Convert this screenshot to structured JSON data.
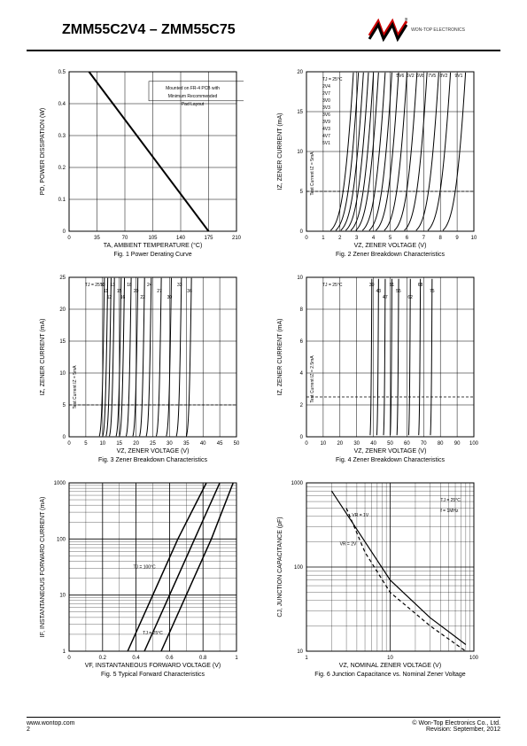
{
  "header": {
    "title": "ZMM55C2V4 – ZMM55C75",
    "company": "WON-TOP ELECTRONICS"
  },
  "footer": {
    "url": "www.wontop.com",
    "page": "2",
    "copyright": "© Won-Top Electronics Co., Ltd.",
    "revision": "Revision: September, 2012"
  },
  "fig1": {
    "title": "Fig. 1 Power Derating Curve",
    "xlabel": "TA, AMBIENT TEMPERATURE (°C)",
    "ylabel": "PD, POWER DISSIPATION (W)",
    "annotation": "Mounted on FR-4 PCB with Minimum Recommended Pad Layout",
    "xlim": [
      0,
      210
    ],
    "xticks": [
      0,
      35,
      70,
      105,
      140,
      175,
      210
    ],
    "ylim": [
      0,
      0.5
    ],
    "yticks": [
      0,
      0.1,
      0.2,
      0.3,
      0.4,
      0.5
    ],
    "line": [
      [
        25,
        0.5
      ],
      [
        175,
        0
      ]
    ],
    "line_width": 2,
    "line_color": "#000000",
    "grid_color": "#000000",
    "background": "#ffffff"
  },
  "fig2": {
    "title": "Fig. 2 Zener Breakdown Characteristics",
    "xlabel": "VZ, ZENER VOLTAGE (V)",
    "ylabel": "IZ, ZENER CURRENT (mA)",
    "annotation_temp": "TJ = 25°C",
    "annotation_test": "Test Current IZ = 5mA",
    "xlim": [
      0,
      10
    ],
    "xticks": [
      0,
      1,
      2,
      3,
      4,
      5,
      6,
      7,
      8,
      9,
      10
    ],
    "ylim": [
      0,
      20
    ],
    "yticks": [
      0,
      5,
      10,
      15,
      20
    ],
    "test_current": 5,
    "curves_labels": [
      "2V4",
      "2V7",
      "3V0",
      "3V3",
      "3V6",
      "3V9",
      "4V3",
      "4V7",
      "5V1",
      "5V6",
      "6V2",
      "6V8",
      "7V5",
      "8V2",
      "9V1"
    ],
    "curve_voltages": [
      2.4,
      2.7,
      3.0,
      3.3,
      3.6,
      3.9,
      4.3,
      4.7,
      5.1,
      5.6,
      6.2,
      6.8,
      7.5,
      8.2,
      9.1
    ],
    "line_color": "#000000",
    "grid_color": "#000000"
  },
  "fig3": {
    "title": "Fig. 3 Zener Breakdown Characteristics",
    "xlabel": "VZ, ZENER VOLTAGE (V)",
    "ylabel": "IZ, ZENER CURRENT (mA)",
    "annotation_temp": "TJ = 25°C",
    "annotation_test": "Test Current IZ = 5mA",
    "xlim": [
      0,
      50
    ],
    "xticks": [
      0,
      5,
      10,
      15,
      20,
      25,
      30,
      35,
      40,
      45,
      50
    ],
    "ylim": [
      0,
      25
    ],
    "yticks": [
      0,
      5,
      10,
      15,
      20,
      25
    ],
    "test_current": 5,
    "curves_labels": [
      "10",
      "11",
      "12",
      "13",
      "15",
      "16",
      "18",
      "20",
      "22",
      "24",
      "27",
      "30",
      "33",
      "36"
    ],
    "curve_voltages": [
      10,
      11,
      12,
      13,
      15,
      16,
      18,
      20,
      22,
      24,
      27,
      30,
      33,
      36
    ],
    "line_color": "#000000",
    "grid_color": "#000000"
  },
  "fig4": {
    "title": "Fig. 4 Zener Breakdown Characteristics",
    "xlabel": "VZ, ZENER VOLTAGE (V)",
    "ylabel": "IZ, ZENER CURRENT (mA)",
    "annotation_temp": "TJ = 25°C",
    "annotation_test": "Test Current IZ = 2.5mA",
    "xlim": [
      0,
      100
    ],
    "xticks": [
      0,
      10,
      20,
      30,
      40,
      50,
      60,
      70,
      80,
      90,
      100
    ],
    "ylim": [
      0,
      10
    ],
    "yticks": [
      0,
      2,
      4,
      6,
      8,
      10
    ],
    "test_current": 2.5,
    "curves_labels": [
      "39",
      "43",
      "47",
      "51",
      "55",
      "62",
      "68",
      "75"
    ],
    "curve_voltages": [
      39,
      43,
      47,
      51,
      55,
      62,
      68,
      75
    ],
    "line_color": "#000000",
    "grid_color": "#000000"
  },
  "fig5": {
    "title": "Fig. 5 Typical Forward Characteristics",
    "xlabel": "VF, INSTANTANEOUS FORWARD VOLTAGE (V)",
    "ylabel": "IF, INSTANTANEOUS FORWARD CURRENT (mA)",
    "xlim": [
      0,
      1.0
    ],
    "xticks": [
      0,
      0.2,
      0.4,
      0.6,
      0.8,
      1.0
    ],
    "ylim": [
      1,
      1000
    ],
    "yticks": [
      1,
      10,
      100,
      1000
    ],
    "yscale": "log",
    "curves": [
      {
        "label": "TJ = 100°C",
        "points": [
          [
            0.35,
            1
          ],
          [
            0.5,
            10
          ],
          [
            0.65,
            100
          ],
          [
            0.82,
            1000
          ]
        ],
        "style": "solid"
      },
      {
        "label": "TJ = 25°C",
        "points": [
          [
            0.55,
            1
          ],
          [
            0.7,
            10
          ],
          [
            0.85,
            100
          ],
          [
            0.98,
            1000
          ]
        ],
        "style": "solid"
      },
      {
        "label": "",
        "points": [
          [
            0.45,
            1
          ],
          [
            0.6,
            10
          ],
          [
            0.75,
            100
          ],
          [
            0.9,
            1000
          ]
        ],
        "style": "solid"
      }
    ],
    "line_color": "#000000",
    "grid_color": "#000000"
  },
  "fig6": {
    "title": "Fig. 6 Junction Capacitance vs. Nominal Zener Voltage",
    "xlabel": "VZ, NOMINAL ZENER VOLTAGE (V)",
    "ylabel": "CJ, JUNCTION CAPACITANCE (pF)",
    "annotation_temp": "TJ = 25°C",
    "annotation_freq": "f = 1MHz",
    "xlim": [
      1,
      100
    ],
    "xticks": [
      1,
      10,
      100
    ],
    "xscale": "log",
    "ylim": [
      10,
      1000
    ],
    "yticks": [
      10,
      100,
      1000
    ],
    "yscale": "log",
    "curves": [
      {
        "label": "VR = 1V",
        "points": [
          [
            2,
            800
          ],
          [
            5,
            200
          ],
          [
            10,
            70
          ],
          [
            30,
            25
          ],
          [
            80,
            12
          ]
        ],
        "style": "solid"
      },
      {
        "label": "VR = 2V",
        "points": [
          [
            3,
            500
          ],
          [
            5,
            150
          ],
          [
            10,
            50
          ],
          [
            30,
            20
          ],
          [
            80,
            10
          ]
        ],
        "style": "dashed"
      }
    ],
    "line_color": "#000000",
    "grid_color": "#000000"
  }
}
